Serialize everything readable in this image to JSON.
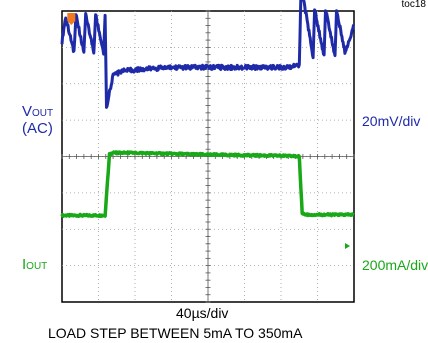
{
  "figure_id": "toc18",
  "channels": {
    "vout": {
      "label_main": "V",
      "label_sub": "OUT",
      "label_mode": "(AC)",
      "scale": "20mV/div",
      "color": "#1f2aa8"
    },
    "iout": {
      "label_main": "I",
      "label_sub": "OUT",
      "scale": "200mA/div",
      "color": "#18a818"
    }
  },
  "timebase": "40µs/div",
  "caption": "LOAD STEP BETWEEN 5mA TO 350mA",
  "trigger_marker_color": "#f07b1e",
  "chart_data": {
    "type": "line",
    "title": "",
    "xlabel": "40µs/div",
    "divisions": {
      "x": 8,
      "y": 8
    },
    "grid": true,
    "x_units": "div",
    "xlim": [
      0,
      8
    ],
    "series": [
      {
        "name": "VOUT (AC)",
        "units": "div (20mV/div)",
        "x": [
          0,
          0.1,
          0.33,
          0.38,
          0.6,
          0.65,
          0.87,
          0.92,
          1.14,
          1.18,
          1.22,
          1.4,
          1.7,
          2.2,
          3,
          4,
          5,
          6,
          6.5,
          6.55,
          6.62,
          6.88,
          6.92,
          7.18,
          7.22,
          7.48,
          7.52,
          7.75,
          8
        ],
        "y": [
          3.15,
          3.85,
          2.85,
          3.9,
          2.85,
          3.9,
          2.85,
          3.9,
          2.85,
          3.9,
          1.35,
          2.25,
          2.35,
          2.4,
          2.45,
          2.45,
          2.45,
          2.45,
          2.5,
          4.7,
          4.3,
          2.75,
          4.05,
          2.75,
          4.05,
          2.75,
          4.05,
          2.85,
          3.6
        ]
      },
      {
        "name": "IOUT",
        "units": "div (200mA/div)",
        "x": [
          0,
          1.18,
          1.3,
          1.4,
          2,
          4,
          6,
          6.5,
          6.58,
          6.7,
          8
        ],
        "y": [
          -1.62,
          -1.62,
          0.05,
          0.1,
          0.1,
          0.05,
          0.02,
          0.0,
          -1.55,
          -1.6,
          -1.6
        ]
      }
    ]
  }
}
